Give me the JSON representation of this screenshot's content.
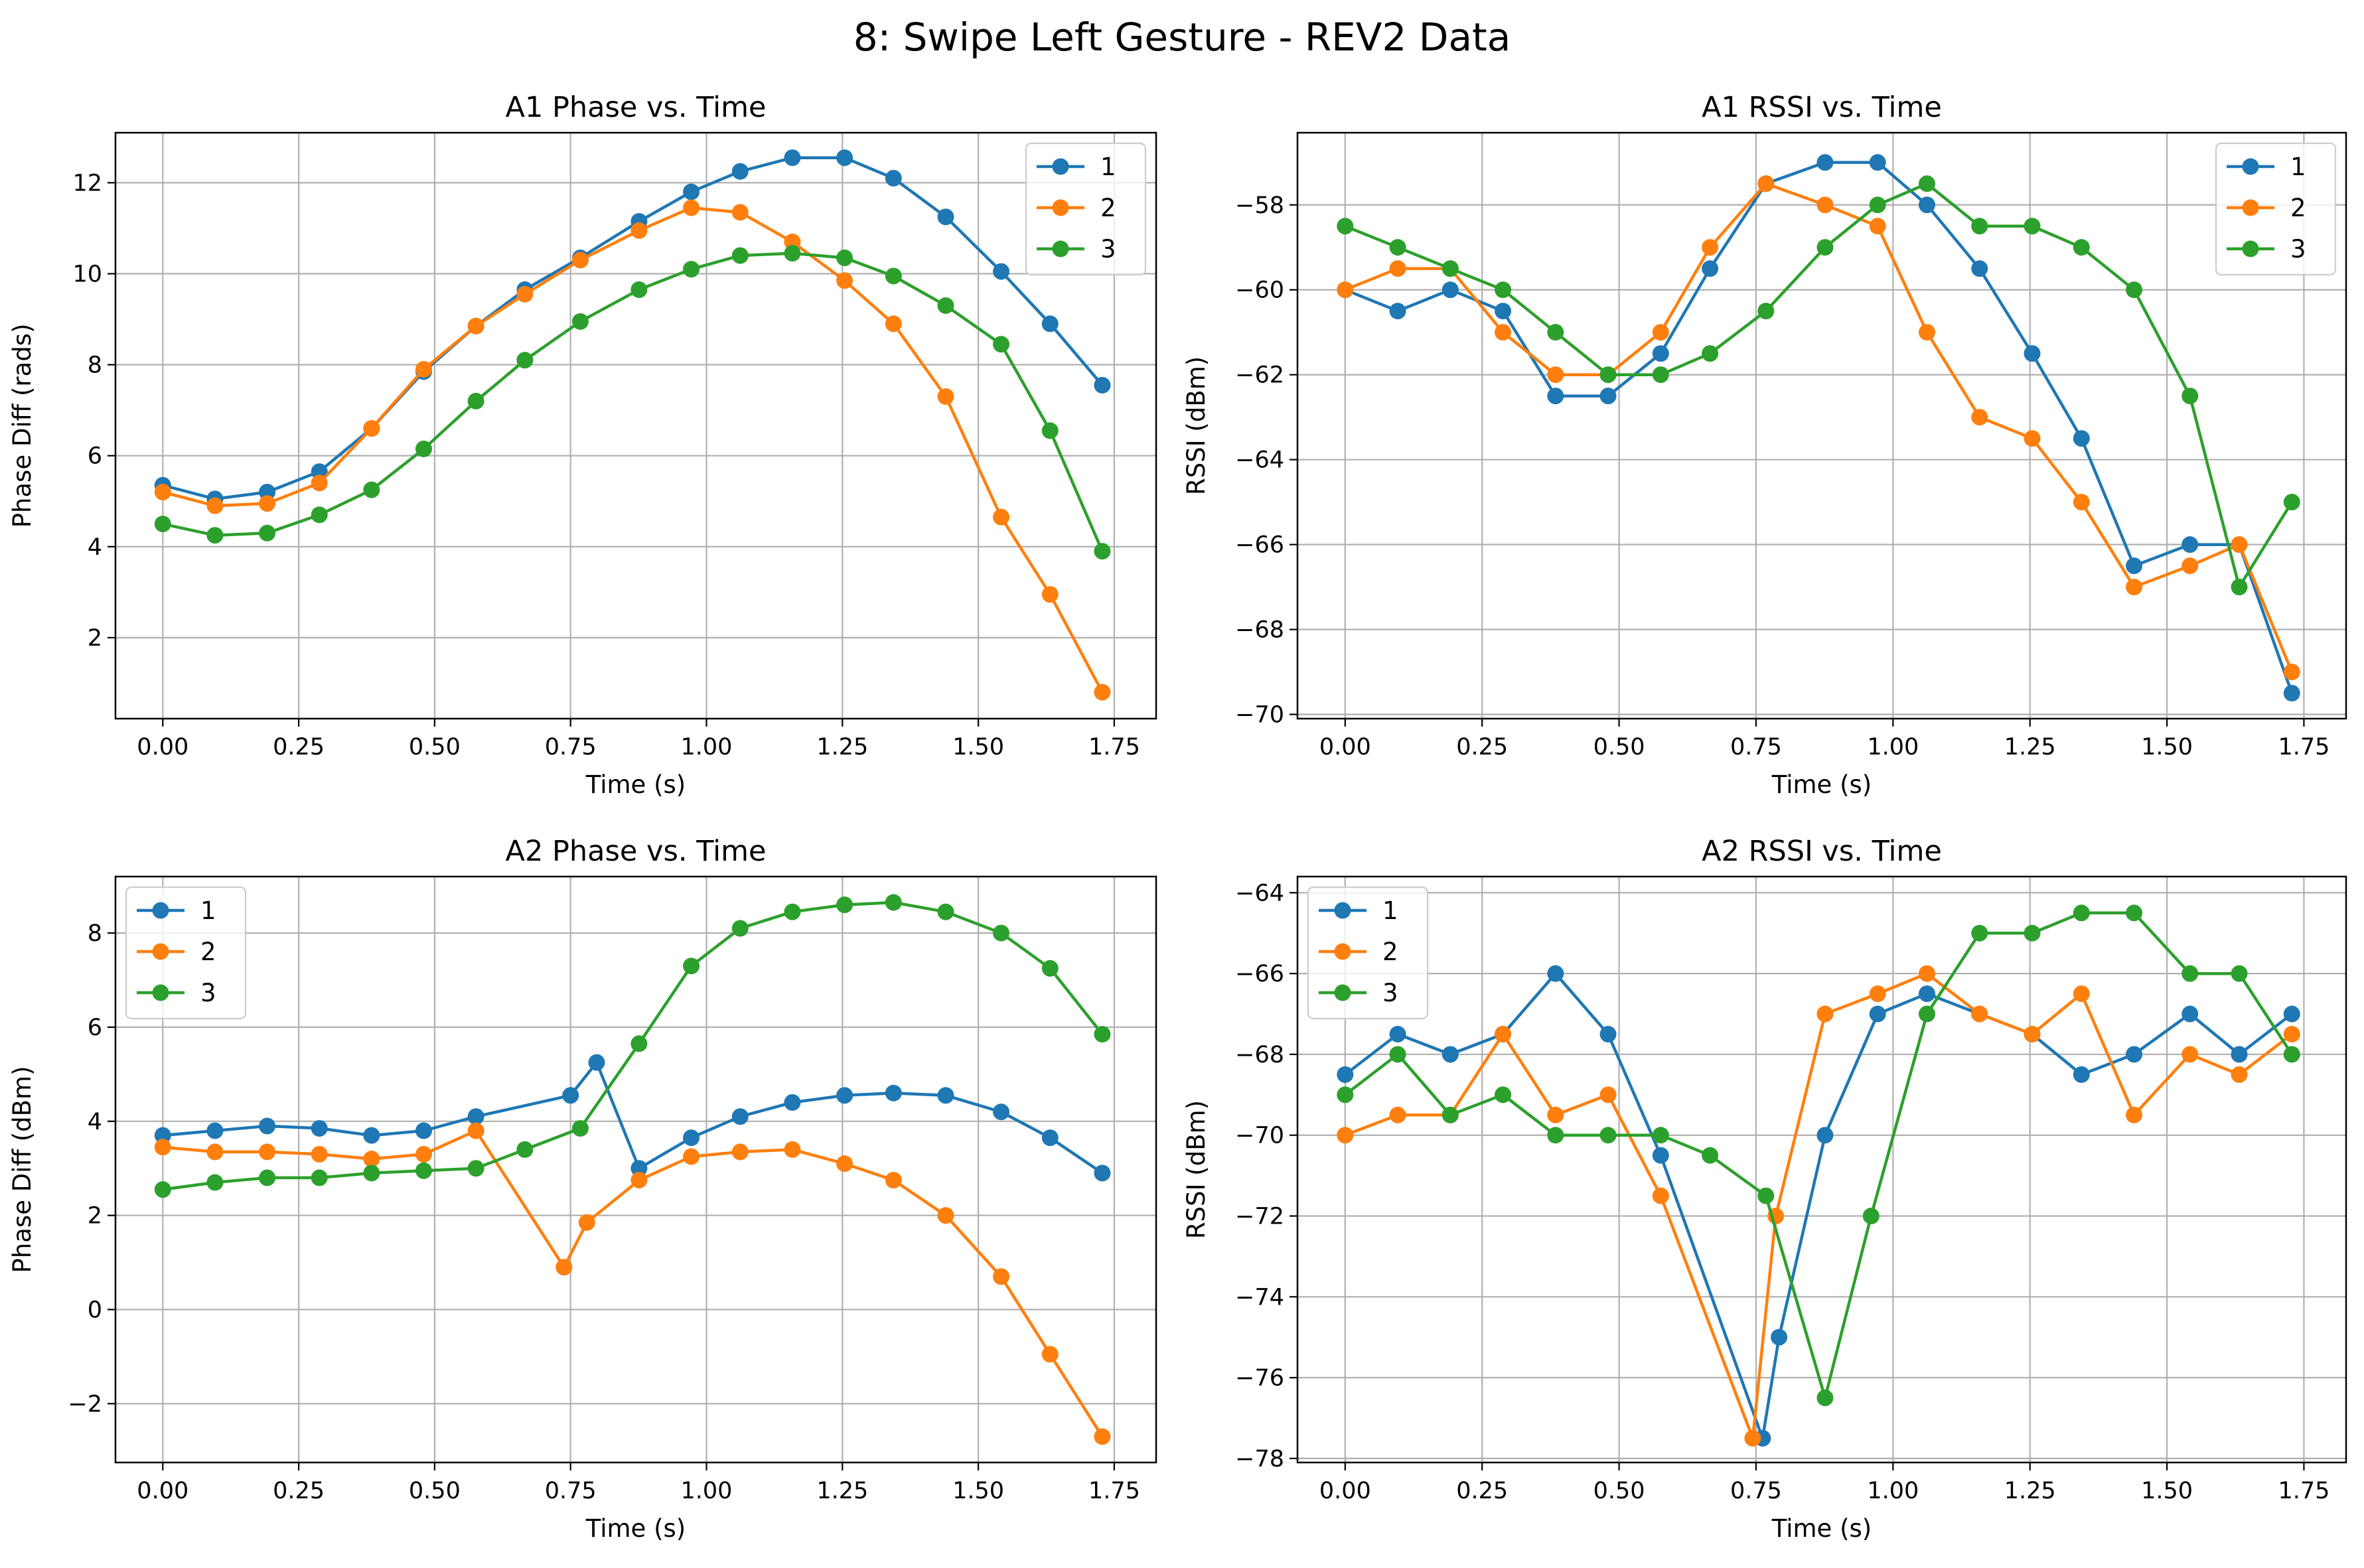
{
  "figure_title": "8: Swipe Left Gesture - REV2 Data",
  "colors": {
    "1": "#1f77b4",
    "2": "#ff7f0e",
    "3": "#2ca02c",
    "grid": "#b0b0b0",
    "axes": "#000000"
  },
  "chart_data": [
    {
      "type": "line",
      "title": "A1 Phase vs. Time",
      "xlabel": "Time (s)",
      "ylabel": "Phase Diff (rads)",
      "xlim": [
        -0.087,
        1.827
      ],
      "ylim": [
        0.22,
        13.1
      ],
      "xticks": [
        0,
        0.25,
        0.5,
        0.75,
        1.0,
        1.25,
        1.5,
        1.75
      ],
      "xtick_labels": [
        "0.00",
        "0.25",
        "0.50",
        "0.75",
        "1.00",
        "1.25",
        "1.50",
        "1.75"
      ],
      "yticks": [
        2,
        4,
        6,
        8,
        10,
        12
      ],
      "ytick_labels": [
        "2",
        "4",
        "6",
        "8",
        "10",
        "12"
      ],
      "grid": true,
      "legend_position": "top-right",
      "series": [
        {
          "name": "1",
          "color": "#1f77b4",
          "x": [
            0.0,
            0.096,
            0.192,
            0.288,
            0.384,
            0.48,
            0.576,
            0.666,
            0.768,
            0.876,
            0.972,
            1.062,
            1.158,
            1.254,
            1.344,
            1.44,
            1.542,
            1.632,
            1.728
          ],
          "y": [
            5.35,
            5.05,
            5.2,
            5.65,
            6.6,
            7.85,
            8.85,
            9.65,
            10.35,
            11.15,
            11.8,
            12.25,
            12.55,
            12.55,
            12.1,
            11.25,
            10.05,
            8.9,
            7.55
          ]
        },
        {
          "name": "2",
          "color": "#ff7f0e",
          "x": [
            0.0,
            0.096,
            0.192,
            0.288,
            0.384,
            0.48,
            0.576,
            0.666,
            0.768,
            0.876,
            0.972,
            1.062,
            1.158,
            1.254,
            1.344,
            1.44,
            1.542,
            1.632,
            1.728
          ],
          "y": [
            5.2,
            4.9,
            4.95,
            5.4,
            6.6,
            7.9,
            8.85,
            9.55,
            10.3,
            10.95,
            11.45,
            11.35,
            10.7,
            9.85,
            8.9,
            7.3,
            4.65,
            2.95,
            0.8
          ]
        },
        {
          "name": "3",
          "color": "#2ca02c",
          "x": [
            0.0,
            0.096,
            0.192,
            0.288,
            0.384,
            0.48,
            0.576,
            0.666,
            0.768,
            0.876,
            0.972,
            1.062,
            1.158,
            1.254,
            1.344,
            1.44,
            1.542,
            1.632,
            1.728
          ],
          "y": [
            4.5,
            4.25,
            4.3,
            4.7,
            5.25,
            6.15,
            7.2,
            8.1,
            8.95,
            9.65,
            10.1,
            10.4,
            10.45,
            10.35,
            9.95,
            9.3,
            8.45,
            6.55,
            3.9
          ]
        }
      ]
    },
    {
      "type": "line",
      "title": "A1 RSSI vs. Time",
      "xlabel": "Time (s)",
      "ylabel": "RSSI (dBm)",
      "xlim": [
        -0.087,
        1.827
      ],
      "ylim": [
        -70.1,
        -56.3
      ],
      "xticks": [
        0,
        0.25,
        0.5,
        0.75,
        1.0,
        1.25,
        1.5,
        1.75
      ],
      "xtick_labels": [
        "0.00",
        "0.25",
        "0.50",
        "0.75",
        "1.00",
        "1.25",
        "1.50",
        "1.75"
      ],
      "yticks": [
        -70,
        -68,
        -66,
        -64,
        -62,
        -60,
        -58
      ],
      "ytick_labels": [
        "−70",
        "−68",
        "−66",
        "−64",
        "−62",
        "−60",
        "−58"
      ],
      "grid": true,
      "legend_position": "top-right",
      "series": [
        {
          "name": "1",
          "color": "#1f77b4",
          "x": [
            0.0,
            0.096,
            0.192,
            0.288,
            0.384,
            0.48,
            0.576,
            0.666,
            0.768,
            0.876,
            0.972,
            1.062,
            1.158,
            1.254,
            1.344,
            1.44,
            1.542,
            1.632,
            1.728
          ],
          "y": [
            -60,
            -60.5,
            -60,
            -60.5,
            -62.5,
            -62.5,
            -61.5,
            -59.5,
            -57.5,
            -57,
            -57,
            -58,
            -59.5,
            -61.5,
            -63.5,
            -66.5,
            -66,
            -66,
            -69.5
          ]
        },
        {
          "name": "2",
          "color": "#ff7f0e",
          "x": [
            0.0,
            0.096,
            0.192,
            0.288,
            0.384,
            0.48,
            0.576,
            0.666,
            0.768,
            0.876,
            0.972,
            1.062,
            1.158,
            1.254,
            1.344,
            1.44,
            1.542,
            1.632,
            1.728
          ],
          "y": [
            -60,
            -59.5,
            -59.5,
            -61,
            -62,
            -62,
            -61,
            -59,
            -57.5,
            -58,
            -58.5,
            -61,
            -63,
            -63.5,
            -65,
            -67,
            -66.5,
            -66,
            -69
          ]
        },
        {
          "name": "3",
          "color": "#2ca02c",
          "x": [
            0.0,
            0.096,
            0.192,
            0.288,
            0.384,
            0.48,
            0.576,
            0.666,
            0.768,
            0.876,
            0.972,
            1.062,
            1.158,
            1.254,
            1.344,
            1.44,
            1.542,
            1.632,
            1.728
          ],
          "y": [
            -58.5,
            -59,
            -59.5,
            -60,
            -61,
            -62,
            -62,
            -61.5,
            -60.5,
            -59,
            -58,
            -57.5,
            -58.5,
            -58.5,
            -59,
            -60,
            -62.5,
            -67,
            -65
          ]
        }
      ]
    },
    {
      "type": "line",
      "title": "A2 Phase vs. Time",
      "xlabel": "Time (s)",
      "ylabel": "Phase Diff (dBm)",
      "xlim": [
        -0.087,
        1.827
      ],
      "ylim": [
        -3.25,
        9.2
      ],
      "xticks": [
        0,
        0.25,
        0.5,
        0.75,
        1.0,
        1.25,
        1.5,
        1.75
      ],
      "xtick_labels": [
        "0.00",
        "0.25",
        "0.50",
        "0.75",
        "1.00",
        "1.25",
        "1.50",
        "1.75"
      ],
      "yticks": [
        -2,
        0,
        2,
        4,
        6,
        8
      ],
      "ytick_labels": [
        "−2",
        "0",
        "2",
        "4",
        "6",
        "8"
      ],
      "grid": true,
      "legend_position": "top-left",
      "series": [
        {
          "name": "1",
          "color": "#1f77b4",
          "x": [
            0.0,
            0.096,
            0.192,
            0.288,
            0.384,
            0.48,
            0.576,
            0.75,
            0.798,
            0.876,
            0.972,
            1.062,
            1.158,
            1.254,
            1.344,
            1.44,
            1.542,
            1.632,
            1.728
          ],
          "y": [
            3.7,
            3.8,
            3.9,
            3.85,
            3.7,
            3.8,
            4.1,
            4.55,
            5.25,
            3.0,
            3.65,
            4.1,
            4.4,
            4.55,
            4.6,
            4.55,
            4.2,
            3.65,
            2.9
          ]
        },
        {
          "name": "2",
          "color": "#ff7f0e",
          "x": [
            0.0,
            0.096,
            0.192,
            0.288,
            0.384,
            0.48,
            0.576,
            0.738,
            0.78,
            0.876,
            0.972,
            1.062,
            1.158,
            1.254,
            1.344,
            1.44,
            1.542,
            1.632,
            1.728
          ],
          "y": [
            3.45,
            3.35,
            3.35,
            3.3,
            3.2,
            3.3,
            3.8,
            0.9,
            1.85,
            2.75,
            3.25,
            3.35,
            3.4,
            3.1,
            2.75,
            2.0,
            0.7,
            -0.95,
            -2.7
          ]
        },
        {
          "name": "3",
          "color": "#2ca02c",
          "x": [
            0.0,
            0.096,
            0.192,
            0.288,
            0.384,
            0.48,
            0.576,
            0.666,
            0.768,
            0.876,
            0.972,
            1.062,
            1.158,
            1.254,
            1.344,
            1.44,
            1.542,
            1.632,
            1.728
          ],
          "y": [
            2.55,
            2.7,
            2.8,
            2.8,
            2.9,
            2.95,
            3.0,
            3.4,
            3.85,
            5.65,
            7.3,
            8.1,
            8.45,
            8.6,
            8.65,
            8.45,
            8.0,
            7.25,
            5.85
          ]
        }
      ]
    },
    {
      "type": "line",
      "title": "A2 RSSI vs. Time",
      "xlabel": "Time (s)",
      "ylabel": "RSSI (dBm)",
      "xlim": [
        -0.087,
        1.827
      ],
      "ylim": [
        -78.1,
        -63.6
      ],
      "xticks": [
        0,
        0.25,
        0.5,
        0.75,
        1.0,
        1.25,
        1.5,
        1.75
      ],
      "xtick_labels": [
        "0.00",
        "0.25",
        "0.50",
        "0.75",
        "1.00",
        "1.25",
        "1.50",
        "1.75"
      ],
      "yticks": [
        -78,
        -76,
        -74,
        -72,
        -70,
        -68,
        -66,
        -64
      ],
      "ytick_labels": [
        "−78",
        "−76",
        "−74",
        "−72",
        "−70",
        "−68",
        "−66",
        "−64"
      ],
      "grid": true,
      "legend_position": "top-left",
      "series": [
        {
          "name": "1",
          "color": "#1f77b4",
          "x": [
            0.0,
            0.096,
            0.192,
            0.288,
            0.384,
            0.48,
            0.576,
            0.762,
            0.792,
            0.876,
            0.972,
            1.062,
            1.158,
            1.254,
            1.344,
            1.44,
            1.542,
            1.632,
            1.728
          ],
          "y": [
            -68.5,
            -67.5,
            -68,
            -67.5,
            -66,
            -67.5,
            -70.5,
            -77.5,
            -75,
            -70,
            -67,
            -66.5,
            -67,
            -67.5,
            -68.5,
            -68,
            -67,
            -68,
            -67
          ]
        },
        {
          "name": "2",
          "color": "#ff7f0e",
          "x": [
            0.0,
            0.096,
            0.192,
            0.288,
            0.384,
            0.48,
            0.576,
            0.744,
            0.786,
            0.876,
            0.972,
            1.062,
            1.158,
            1.254,
            1.344,
            1.44,
            1.542,
            1.632,
            1.728
          ],
          "y": [
            -70,
            -69.5,
            -69.5,
            -67.5,
            -69.5,
            -69,
            -71.5,
            -77.5,
            -72,
            -67,
            -66.5,
            -66,
            -67,
            -67.5,
            -66.5,
            -69.5,
            -68,
            -68.5,
            -67.5
          ]
        },
        {
          "name": "3",
          "color": "#2ca02c",
          "x": [
            0.0,
            0.096,
            0.192,
            0.288,
            0.384,
            0.48,
            0.576,
            0.666,
            0.768,
            0.876,
            0.96,
            1.062,
            1.158,
            1.254,
            1.344,
            1.44,
            1.542,
            1.632,
            1.728
          ],
          "y": [
            -69,
            -68,
            -69.5,
            -69,
            -70,
            -70,
            -70,
            -70.5,
            -71.5,
            -76.5,
            -72,
            -67,
            -65,
            -65,
            -64.5,
            -64.5,
            -66,
            -66,
            -68
          ]
        }
      ]
    }
  ]
}
